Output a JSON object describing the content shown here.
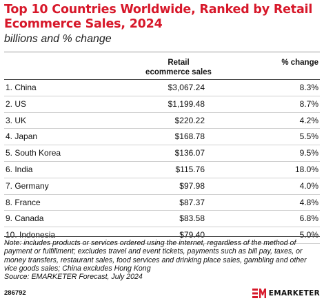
{
  "title": "Top 10 Countries Worldwide, Ranked by Retail Ecommerce Sales, 2024",
  "subtitle": "billions and % change",
  "chart_data": {
    "type": "table",
    "columns": [
      "",
      "Retail ecommerce sales",
      "% change"
    ],
    "header_sales_line1": "Retail",
    "header_sales_line2": "ecommerce sales",
    "header_pct": "% change",
    "rows": [
      {
        "country": "1. China",
        "sales": "$3,067.24",
        "change": "8.3%"
      },
      {
        "country": "2. US",
        "sales": "$1,199.48",
        "change": "8.7%"
      },
      {
        "country": "3. UK",
        "sales": "$220.22",
        "change": "4.2%"
      },
      {
        "country": "4. Japan",
        "sales": "$168.78",
        "change": "5.5%"
      },
      {
        "country": "5. South Korea",
        "sales": "$136.07",
        "change": "9.5%"
      },
      {
        "country": "6. India",
        "sales": "$115.76",
        "change": "18.0%"
      },
      {
        "country": "7. Germany",
        "sales": "$97.98",
        "change": "4.0%"
      },
      {
        "country": "8. France",
        "sales": "$87.37",
        "change": "4.8%"
      },
      {
        "country": "9. Canada",
        "sales": "$83.58",
        "change": "6.8%"
      },
      {
        "country": "10. Indonesia",
        "sales": "$79.40",
        "change": "5.0%"
      }
    ]
  },
  "note": "Note: includes products or services ordered using the internet, regardless of the method of payment or fulfillment; excludes travel and event tickets, payments such as bill pay, taxes, or money transfers, restaurant sales, food services and drinking place sales, gambling and other vice goods sales; China excludes Hong Kong",
  "source": "Source: EMARKETER Forecast, July 2024",
  "chart_id": "286792",
  "logo_text": "EMARKETER",
  "colors": {
    "title": "#d7182a",
    "logo": "#d7182a"
  }
}
